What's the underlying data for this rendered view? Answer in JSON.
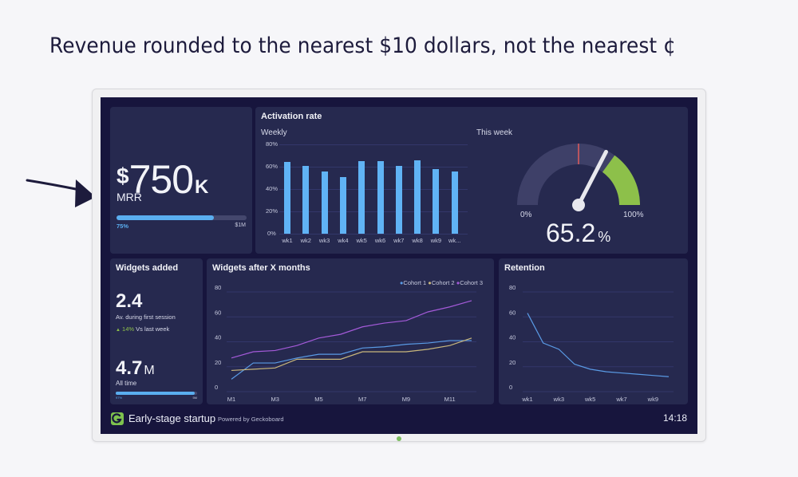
{
  "caption": "Revenue rounded to the nearest $10 dollars, not the nearest ¢",
  "colors": {
    "background": "#17153d",
    "panel": "#26294f",
    "bar_blue": "#60b3f5",
    "cohort1": "#5a9be6",
    "cohort2": "#c9b77c",
    "cohort3": "#a45ad9",
    "gauge_green": "#8dc04a",
    "gauge_track": "#3e4068",
    "gauge_target": "#e05a5a"
  },
  "mrr": {
    "currency": "$",
    "value": "750",
    "unit": "K",
    "label": "MRR",
    "progress_pct": 75,
    "progress_label": "75%",
    "goal_label": "$1M"
  },
  "activation": {
    "title": "Activation rate",
    "weekly_label": "Weekly",
    "this_week_label": "This week",
    "gauge_min": "0%",
    "gauge_max": "100%",
    "gauge_value": "65.2",
    "gauge_unit": "%"
  },
  "widgets_added": {
    "title": "Widgets added",
    "avg_value": "2.4",
    "avg_label": "Av. during first session",
    "trend_icon": "triangle-up-icon",
    "trend_value": "14%",
    "trend_label": "Vs last week",
    "total_value": "4.7",
    "total_unit": "M",
    "total_label": "All time",
    "progress_pct": 97,
    "progress_left": "97%",
    "progress_right": "5M"
  },
  "widgets_after": {
    "title": "Widgets after X months",
    "legend": [
      "Cohort 1",
      "Cohort 2",
      "Cohort 3"
    ]
  },
  "retention": {
    "title": "Retention"
  },
  "footer": {
    "title": "Early-stage startup",
    "powered": "Powered by Geckoboard",
    "time": "14:18"
  },
  "chart_data": [
    {
      "type": "bar",
      "title": "Activation rate — Weekly",
      "categories": [
        "wk1",
        "wk2",
        "wk3",
        "wk4",
        "wk5",
        "wk6",
        "wk7",
        "wk8",
        "wk9",
        "wk..."
      ],
      "values": [
        64,
        61,
        56,
        51,
        65,
        65,
        61,
        66,
        58,
        56
      ],
      "ylabel": "%",
      "yticks": [
        "0%",
        "20%",
        "40%",
        "60%",
        "80%"
      ],
      "ylim": [
        0,
        80
      ]
    },
    {
      "type": "gauge",
      "title": "Activation rate — This week",
      "value": 65.2,
      "min": 0,
      "max": 100,
      "target": 50,
      "green_from": 70
    },
    {
      "type": "line",
      "title": "Widgets after X months",
      "x": [
        "M1",
        "M2",
        "M3",
        "M4",
        "M5",
        "M6",
        "M7",
        "M8",
        "M9",
        "M10",
        "M11",
        "M12"
      ],
      "xticks": [
        "M1",
        "M3",
        "M5",
        "M7",
        "M9",
        "M11"
      ],
      "yticks": [
        "0",
        "20",
        "40",
        "60",
        "80"
      ],
      "ylim": [
        0,
        80
      ],
      "series": [
        {
          "name": "Cohort 1",
          "values": [
            10,
            23,
            23,
            27,
            30,
            30,
            35,
            36,
            38,
            39,
            41,
            41
          ]
        },
        {
          "name": "Cohort 2",
          "values": [
            17,
            18,
            19,
            26,
            26,
            26,
            32,
            32,
            32,
            34,
            37,
            43
          ]
        },
        {
          "name": "Cohort 3",
          "values": [
            27,
            32,
            33,
            37,
            43,
            46,
            52,
            55,
            57,
            64,
            68,
            73
          ]
        }
      ],
      "legend_position": "top-right"
    },
    {
      "type": "line",
      "title": "Retention",
      "x": [
        "wk1",
        "wk2",
        "wk3",
        "wk4",
        "wk5",
        "wk6",
        "wk7",
        "wk8",
        "wk9",
        "wk10"
      ],
      "xticks": [
        "wk1",
        "wk3",
        "wk5",
        "wk7",
        "wk9"
      ],
      "yticks": [
        "0",
        "20",
        "40",
        "60",
        "80"
      ],
      "ylim": [
        0,
        80
      ],
      "series": [
        {
          "name": "Retention",
          "values": [
            63,
            39,
            34,
            22,
            18,
            16,
            15,
            14,
            13,
            12
          ]
        }
      ]
    }
  ]
}
